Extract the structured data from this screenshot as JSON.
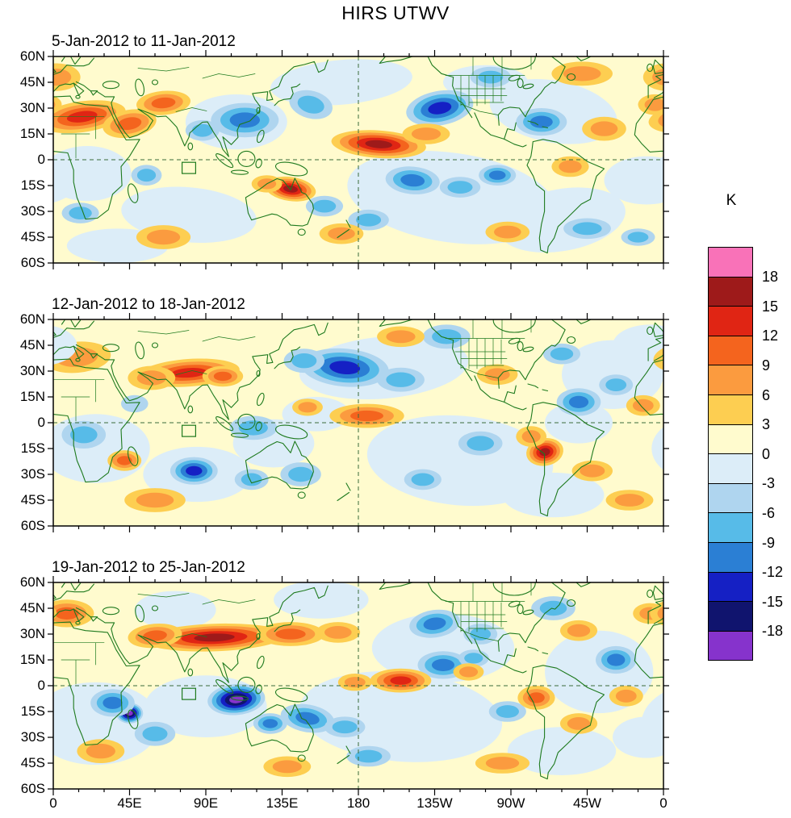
{
  "chart_data": {
    "type": "heatmap",
    "subtype": "filled_contour_anomaly_world_maps",
    "title": "HIRS UTWV",
    "units": "K",
    "colorbar_levels_top_to_bottom": [
      "18",
      "15",
      "12",
      "9",
      "6",
      "3",
      "0",
      "-3",
      "-6",
      "-9",
      "-12",
      "-15",
      "-18"
    ],
    "colorbar_colors_top_to_bottom": [
      "#F972B8",
      "#9E1A1A",
      "#E02514",
      "#F4641E",
      "#FB9B3F",
      "#FDCE51",
      "#FFFBCE",
      "#DCEDF8",
      "#AFD5EF",
      "#57BBE8",
      "#2B7FD4",
      "#1520C4",
      "#10146E",
      "#8633CC"
    ],
    "band_colors": {
      "1": "#FFFBCE",
      "-1": "#DCEDF8",
      "3": "#FDCE51",
      "6": "#FB9B3F",
      "9": "#F4641E",
      "12": "#E02514",
      "15": "#9E1A1A",
      "18": "#F972B8",
      "-3": "#AFD5EF",
      "-6": "#57BBE8",
      "-9": "#2B7FD4",
      "-12": "#1520C4",
      "-15": "#10146E",
      "-18": "#8633CC"
    },
    "lon_ticks": [
      "0",
      "45E",
      "90E",
      "135E",
      "180",
      "135W",
      "90W",
      "45W",
      "0"
    ],
    "lat_ticks": [
      "60N",
      "45N",
      "30N",
      "15N",
      "0",
      "15S",
      "30S",
      "45S",
      "60S"
    ],
    "lon_range_deg": [
      0,
      360
    ],
    "lat_range_deg": [
      -60,
      60
    ],
    "grid_lines": {
      "equator_lat": 0,
      "dateline_lon": 180
    },
    "marker_box": {
      "lon_min": 76,
      "lon_max": 84,
      "lat_min": -8,
      "lat_max": -1.5
    },
    "anomaly_fields": [
      "lon_deg_0to360",
      "lat_deg",
      "rx_deg",
      "ry_deg",
      "rotation_deg",
      "peak_K"
    ],
    "panels": [
      {
        "label": "5-Jan-2012 to 11-Jan-2012",
        "anomalies": [
          [
            170,
            45,
            42,
            13,
            -5,
            -1
          ],
          [
            235,
            -22,
            62,
            26,
            8,
            -1
          ],
          [
            300,
            -35,
            38,
            18,
            -10,
            -1
          ],
          [
            80,
            -32,
            40,
            16,
            5,
            -1
          ],
          [
            20,
            -8,
            26,
            16,
            0,
            -1
          ],
          [
            108,
            22,
            30,
            16,
            0,
            -1
          ],
          [
            295,
            28,
            38,
            18,
            10,
            -1
          ],
          [
            350,
            -12,
            25,
            14,
            0,
            -1
          ],
          [
            255,
            45,
            25,
            10,
            0,
            -1
          ],
          [
            38,
            -50,
            30,
            10,
            0,
            -1
          ],
          [
            113,
            23,
            20,
            10,
            0,
            -9
          ],
          [
            88,
            17,
            10,
            6,
            0,
            -6
          ],
          [
            152,
            32,
            13,
            8,
            15,
            -6
          ],
          [
            228,
            30,
            20,
            10,
            -10,
            -12
          ],
          [
            212,
            -12,
            16,
            8,
            5,
            -9
          ],
          [
            240,
            -16,
            12,
            6,
            0,
            -6
          ],
          [
            262,
            -9,
            11,
            6,
            0,
            -9
          ],
          [
            288,
            22,
            15,
            8,
            0,
            -9
          ],
          [
            315,
            -40,
            14,
            6,
            0,
            -6
          ],
          [
            55,
            -9,
            9,
            6,
            0,
            -6
          ],
          [
            160,
            -27,
            11,
            6,
            0,
            -6
          ],
          [
            16,
            -31,
            11,
            6,
            0,
            -6
          ],
          [
            258,
            48,
            12,
            6,
            0,
            -6
          ],
          [
            186,
            -35,
            12,
            6,
            0,
            -6
          ],
          [
            345,
            -45,
            10,
            5,
            0,
            -6
          ],
          [
            17,
            25,
            26,
            9,
            -8,
            12
          ],
          [
            45,
            21,
            16,
            8,
            -10,
            9
          ],
          [
            65,
            33,
            16,
            7,
            -5,
            9
          ],
          [
            2,
            48,
            14,
            8,
            0,
            6
          ],
          [
            192,
            9,
            28,
            8,
            4,
            15
          ],
          [
            220,
            15,
            14,
            6,
            0,
            6
          ],
          [
            140,
            -17,
            15,
            7,
            8,
            15
          ],
          [
            126,
            -14,
            9,
            5,
            0,
            6
          ],
          [
            325,
            18,
            13,
            7,
            0,
            6
          ],
          [
            312,
            50,
            18,
            7,
            0,
            6
          ],
          [
            305,
            -4,
            11,
            6,
            0,
            6
          ],
          [
            65,
            -45,
            16,
            7,
            0,
            6
          ],
          [
            170,
            -43,
            13,
            6,
            0,
            6
          ],
          [
            268,
            -42,
            13,
            6,
            0,
            6
          ],
          [
            355,
            32,
            10,
            6,
            0,
            6
          ]
        ]
      },
      {
        "label": "12-Jan-2012 to 18-Jan-2012",
        "anomalies": [
          [
            195,
            32,
            50,
            18,
            -5,
            -1
          ],
          [
            240,
            -22,
            55,
            26,
            5,
            -1
          ],
          [
            25,
            -15,
            32,
            20,
            0,
            -1
          ],
          [
            330,
            28,
            30,
            20,
            0,
            -1
          ],
          [
            85,
            -30,
            32,
            16,
            0,
            -1
          ],
          [
            130,
            -12,
            24,
            14,
            0,
            -1
          ],
          [
            352,
            45,
            22,
            12,
            0,
            -1
          ],
          [
            295,
            -42,
            30,
            13,
            0,
            -1
          ],
          [
            155,
            5,
            20,
            10,
            0,
            -1
          ],
          [
            310,
            0,
            20,
            12,
            0,
            -1
          ],
          [
            172,
            32,
            26,
            11,
            5,
            -12
          ],
          [
            148,
            36,
            12,
            7,
            0,
            -6
          ],
          [
            205,
            25,
            14,
            7,
            0,
            -6
          ],
          [
            118,
            -3,
            14,
            7,
            0,
            -6
          ],
          [
            83,
            -28,
            14,
            8,
            0,
            -12
          ],
          [
            146,
            -30,
            12,
            7,
            0,
            -6
          ],
          [
            117,
            -33,
            10,
            6,
            0,
            -6
          ],
          [
            310,
            12,
            13,
            8,
            0,
            -9
          ],
          [
            332,
            22,
            10,
            6,
            0,
            -6
          ],
          [
            252,
            -12,
            13,
            7,
            0,
            -6
          ],
          [
            218,
            -33,
            11,
            6,
            0,
            -6
          ],
          [
            18,
            -7,
            13,
            8,
            0,
            -6
          ],
          [
            232,
            50,
            14,
            7,
            0,
            -6
          ],
          [
            300,
            40,
            11,
            6,
            0,
            -6
          ],
          [
            48,
            11,
            8,
            5,
            0,
            -3
          ],
          [
            80,
            29,
            30,
            8,
            -4,
            12
          ],
          [
            58,
            26,
            14,
            7,
            0,
            6
          ],
          [
            100,
            27,
            12,
            6,
            0,
            9
          ],
          [
            14,
            38,
            20,
            9,
            -5,
            6
          ],
          [
            185,
            4,
            22,
            7,
            0,
            9
          ],
          [
            150,
            9,
            9,
            5,
            0,
            6
          ],
          [
            290,
            -17,
            11,
            8,
            -10,
            15
          ],
          [
            282,
            -8,
            9,
            6,
            0,
            6
          ],
          [
            60,
            -45,
            18,
            7,
            0,
            6
          ],
          [
            42,
            -22,
            10,
            6,
            0,
            9
          ],
          [
            205,
            50,
            14,
            6,
            0,
            6
          ],
          [
            318,
            -28,
            12,
            6,
            0,
            6
          ],
          [
            348,
            10,
            10,
            6,
            0,
            6
          ],
          [
            262,
            28,
            12,
            6,
            0,
            6
          ],
          [
            340,
            -45,
            14,
            6,
            0,
            6
          ]
        ]
      },
      {
        "label": "19-Jan-2012 to 25-Jan-2012",
        "anomalies": [
          [
            205,
            -18,
            60,
            26,
            5,
            -1
          ],
          [
            230,
            22,
            42,
            20,
            0,
            -1
          ],
          [
            25,
            -22,
            38,
            24,
            0,
            -1
          ],
          [
            90,
            -12,
            36,
            18,
            0,
            -1
          ],
          [
            322,
            8,
            32,
            24,
            0,
            -1
          ],
          [
            158,
            50,
            28,
            11,
            0,
            -1
          ],
          [
            300,
            -38,
            32,
            14,
            0,
            -1
          ],
          [
            72,
            44,
            24,
            11,
            0,
            -1
          ],
          [
            350,
            -30,
            20,
            12,
            0,
            -1
          ],
          [
            108,
            -8,
            17,
            9,
            -5,
            -18
          ],
          [
            45,
            -16,
            8,
            6,
            0,
            -18
          ],
          [
            35,
            -10,
            13,
            8,
            0,
            -9
          ],
          [
            150,
            -19,
            16,
            8,
            10,
            -9
          ],
          [
            172,
            -24,
            12,
            6,
            0,
            -6
          ],
          [
            186,
            -41,
            13,
            6,
            0,
            -6
          ],
          [
            230,
            12,
            15,
            8,
            0,
            -9
          ],
          [
            248,
            16,
            9,
            5,
            0,
            -6
          ],
          [
            268,
            -15,
            11,
            6,
            0,
            -6
          ],
          [
            332,
            15,
            12,
            8,
            0,
            -9
          ],
          [
            60,
            -28,
            12,
            7,
            0,
            -6
          ],
          [
            225,
            36,
            15,
            8,
            -8,
            -9
          ],
          [
            252,
            30,
            10,
            6,
            0,
            -6
          ],
          [
            295,
            45,
            13,
            7,
            0,
            -6
          ],
          [
            128,
            -22,
            10,
            6,
            0,
            -9
          ],
          [
            95,
            28,
            42,
            8,
            -2,
            15
          ],
          [
            60,
            29,
            16,
            7,
            -5,
            9
          ],
          [
            140,
            30,
            20,
            7,
            0,
            9
          ],
          [
            168,
            31,
            13,
            6,
            0,
            6
          ],
          [
            8,
            42,
            16,
            8,
            0,
            9
          ],
          [
            352,
            42,
            10,
            6,
            0,
            6
          ],
          [
            205,
            3,
            18,
            7,
            0,
            12
          ],
          [
            178,
            2,
            10,
            5,
            0,
            6
          ],
          [
            245,
            8,
            9,
            5,
            0,
            6
          ],
          [
            285,
            -7,
            11,
            7,
            0,
            9
          ],
          [
            310,
            -22,
            11,
            6,
            0,
            6
          ],
          [
            338,
            -6,
            10,
            6,
            0,
            6
          ],
          [
            28,
            -38,
            14,
            7,
            0,
            6
          ],
          [
            265,
            -45,
            16,
            6,
            0,
            6
          ],
          [
            138,
            -47,
            14,
            6,
            0,
            6
          ],
          [
            310,
            32,
            11,
            6,
            0,
            6
          ]
        ]
      }
    ]
  }
}
